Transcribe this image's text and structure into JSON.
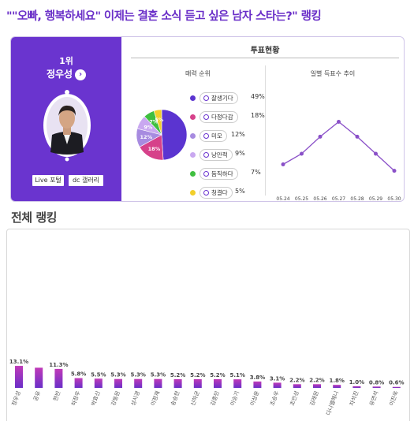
{
  "page": {
    "title": "\"\"오빠, 행복하세요\" 이제는 결혼 소식 듣고 싶은 남자 스타는?\" 랭킹"
  },
  "winner": {
    "rank": "1위",
    "name": "정우성",
    "arrow": "›",
    "live_button": "Live 포털",
    "dc_button": "dc 갤러리"
  },
  "vote_status": {
    "title": "투표현황",
    "charm_title": "매력 순위",
    "trend_title": "일별 득표수 추이"
  },
  "charm": [
    {
      "label": "잘생기다",
      "pct": "49%",
      "value": 49,
      "color": "#5b34d0"
    },
    {
      "label": "다정다감",
      "pct": "18%",
      "value": 18,
      "color": "#d6418a"
    },
    {
      "label": "미모",
      "pct": "12%",
      "value": 12,
      "color": "#a78be0"
    },
    {
      "label": "낭만적",
      "pct": "9%",
      "value": 9,
      "color": "#c9a8f0"
    },
    {
      "label": "듬직하다",
      "pct": "7%",
      "value": 7,
      "color": "#3fbf3f"
    },
    {
      "label": "청결다",
      "pct": "5%",
      "value": 5,
      "color": "#f2cf2a"
    }
  ],
  "chart_data": [
    {
      "type": "pie",
      "title": "매력 순위",
      "categories": [
        "잘생기다",
        "다정다감",
        "미모",
        "낭만적",
        "듬직하다",
        "청결다"
      ],
      "values": [
        49,
        18,
        12,
        9,
        7,
        5
      ],
      "slice_labels": [
        "",
        "18%",
        "12%",
        "9%",
        "7%",
        "5%"
      ],
      "colors": [
        "#5b34d0",
        "#d6418a",
        "#a78be0",
        "#c9a8f0",
        "#3fbf3f",
        "#f2cf2a"
      ]
    },
    {
      "type": "line",
      "title": "일별 득표수 추이",
      "x": [
        "05.24",
        "05.25",
        "05.26",
        "05.27",
        "05.28",
        "05.29",
        "05.30"
      ],
      "y": [
        3,
        4,
        5.6,
        7,
        5.6,
        4,
        2.4
      ],
      "ylim": [
        0,
        8
      ],
      "color": "#8a50c8"
    },
    {
      "type": "bar",
      "title": "전체 랭킹",
      "categories": [
        "정우성",
        "공유",
        "현빈",
        "하정우",
        "박효신",
        "강동원",
        "성시경",
        "이정재",
        "송승헌",
        "신하균",
        "김종민",
        "이승기",
        "이상윤",
        "조승우",
        "조인성",
        "김래원",
        "다니엘헤니",
        "차석진",
        "유연석",
        "이진욱"
      ],
      "values": [
        13.1,
        12.0,
        11.3,
        5.8,
        5.5,
        5.3,
        5.3,
        5.3,
        5.2,
        5.2,
        5.2,
        5.1,
        3.8,
        3.1,
        2.2,
        2.2,
        1.8,
        1.0,
        0.8,
        0.6
      ],
      "value_labels": [
        "13.1%",
        "",
        "11.3%",
        "5.8%",
        "5.5%",
        "5.3%",
        "5.3%",
        "5.3%",
        "5.2%",
        "5.2%",
        "5.2%",
        "5.1%",
        "3.8%",
        "3.1%",
        "2.2%",
        "2.2%",
        "1.8%",
        "1.0%",
        "0.8%",
        "0.6%"
      ],
      "ylim": [
        0,
        90
      ],
      "color_top": "#c03ab8",
      "color_bottom": "#6a2fc8"
    }
  ],
  "ranking": {
    "title": "전체 랭킹"
  }
}
